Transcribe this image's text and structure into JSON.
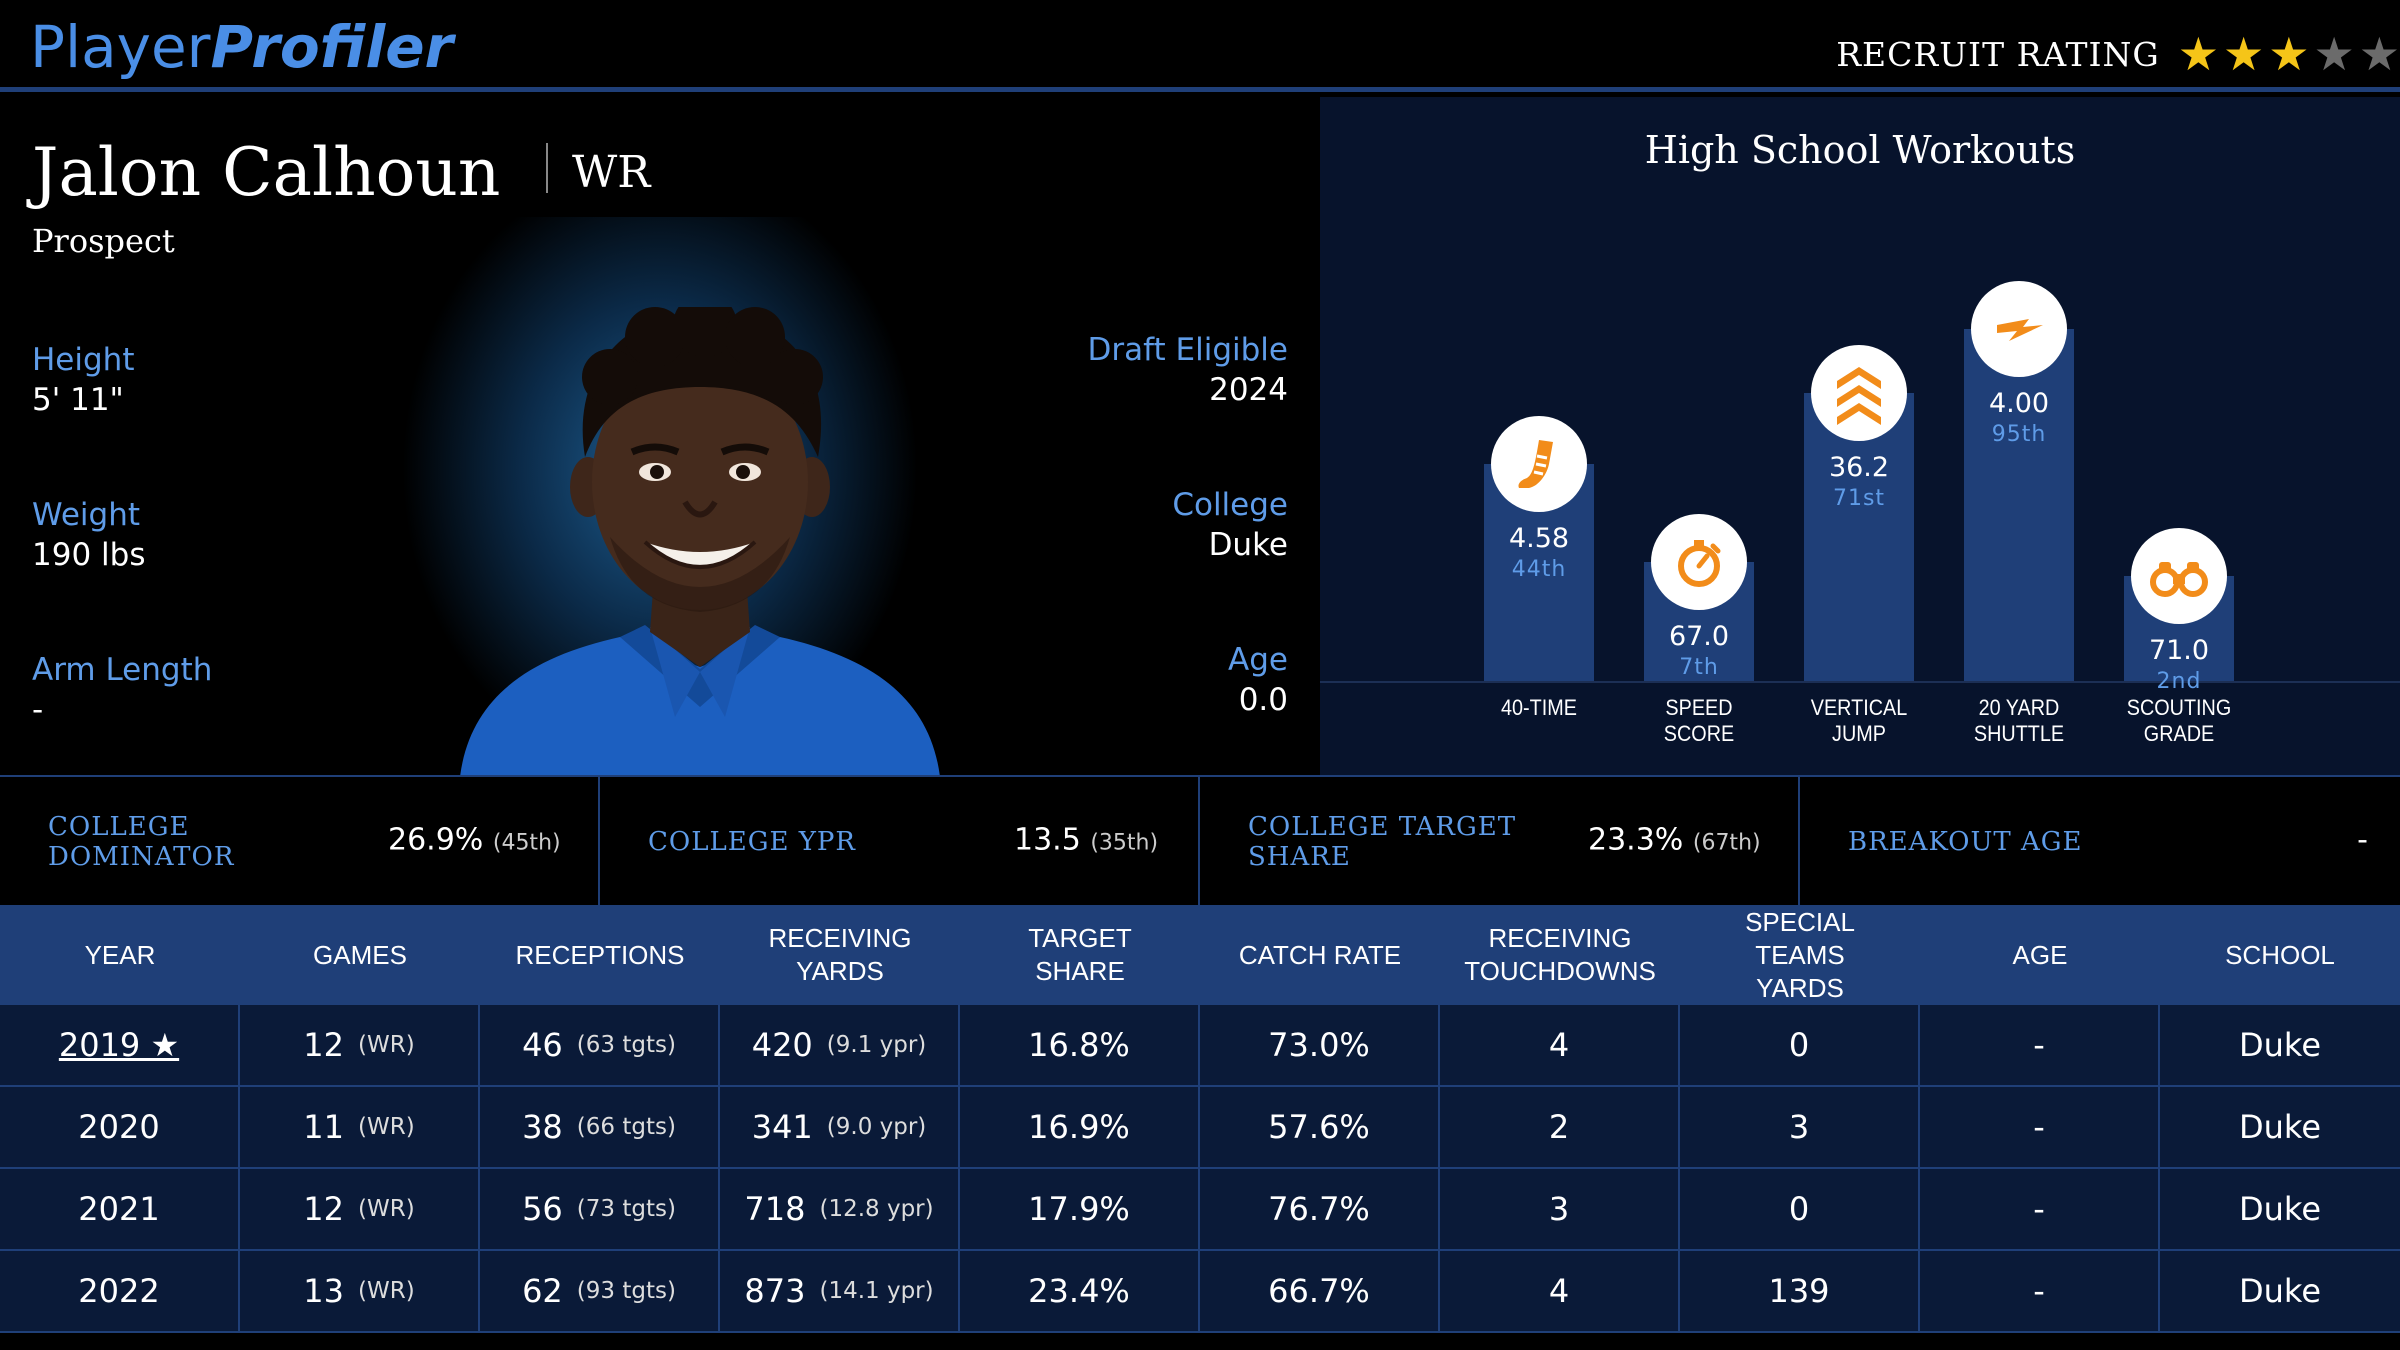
{
  "header": {
    "logo_part1": "Player",
    "logo_part2": "Profiler",
    "recruit_label": "RECRUIT RATING",
    "stars_filled": 3,
    "stars_total": 5
  },
  "player": {
    "name": "Jalon Calhoun",
    "position": "WR",
    "status": "Prospect",
    "height_label": "Height",
    "height": "5' 11\"",
    "weight_label": "Weight",
    "weight": "190 lbs",
    "arm_label": "Arm Length",
    "arm": "-",
    "draft_label": "Draft Eligible",
    "draft": "2024",
    "college_label": "College",
    "college": "Duke",
    "age_label": "Age",
    "age": "0.0"
  },
  "workouts": {
    "title": "High School Workouts",
    "items": [
      {
        "label_line1": "40-TIME",
        "label_line2": "",
        "value": "4.58",
        "percentile": "44th",
        "pct": 44,
        "icon": "running-shoe-icon"
      },
      {
        "label_line1": "SPEED",
        "label_line2": "SCORE",
        "value": "67.0",
        "percentile": "7th",
        "pct": 7,
        "icon": "stopwatch-icon"
      },
      {
        "label_line1": "VERTICAL",
        "label_line2": "JUMP",
        "value": "36.2",
        "percentile": "71st",
        "pct": 71,
        "icon": "chevrons-up-icon"
      },
      {
        "label_line1": "20 YARD",
        "label_line2": "SHUTTLE",
        "value": "4.00",
        "percentile": "95th",
        "pct": 95,
        "icon": "lightning-icon"
      },
      {
        "label_line1": "SCOUTING",
        "label_line2": "GRADE",
        "value": "71.0",
        "percentile": "2nd",
        "pct": 2,
        "icon": "binoculars-icon"
      }
    ]
  },
  "metrics": [
    {
      "label": "COLLEGE DOMINATOR",
      "value": "26.9%",
      "rank": "(45th)"
    },
    {
      "label": "COLLEGE YPR",
      "value": "13.5",
      "rank": "(35th)"
    },
    {
      "label": "COLLEGE TARGET SHARE",
      "value": "23.3%",
      "rank": "(67th)"
    },
    {
      "label": "BREAKOUT AGE",
      "value": "-",
      "rank": ""
    }
  ],
  "table": {
    "headers": [
      "YEAR",
      "GAMES",
      "RECEPTIONS",
      "RECEIVING YARDS",
      "TARGET SHARE",
      "CATCH RATE",
      "RECEIVING TOUCHDOWNS",
      "SPECIAL TEAMS YARDS",
      "AGE",
      "SCHOOL"
    ],
    "rows": [
      {
        "year": "2019 ★",
        "breakout": true,
        "games": "12",
        "games_pos": "(WR)",
        "rec": "46",
        "tgts": "(63 tgts)",
        "yds": "420",
        "ypr": "(9.1 ypr)",
        "tshare": "16.8%",
        "catch": "73.0%",
        "td": "4",
        "st": "0",
        "age": "-",
        "school": "Duke"
      },
      {
        "year": "2020",
        "breakout": false,
        "games": "11",
        "games_pos": "(WR)",
        "rec": "38",
        "tgts": "(66 tgts)",
        "yds": "341",
        "ypr": "(9.0 ypr)",
        "tshare": "16.9%",
        "catch": "57.6%",
        "td": "2",
        "st": "3",
        "age": "-",
        "school": "Duke"
      },
      {
        "year": "2021",
        "breakout": false,
        "games": "12",
        "games_pos": "(WR)",
        "rec": "56",
        "tgts": "(73 tgts)",
        "yds": "718",
        "ypr": "(12.8 ypr)",
        "tshare": "17.9%",
        "catch": "76.7%",
        "td": "3",
        "st": "0",
        "age": "-",
        "school": "Duke"
      },
      {
        "year": "2022",
        "breakout": false,
        "games": "13",
        "games_pos": "(WR)",
        "rec": "62",
        "tgts": "(93 tgts)",
        "yds": "873",
        "ypr": "(14.1 ypr)",
        "tshare": "23.4%",
        "catch": "66.7%",
        "td": "4",
        "st": "139",
        "age": "-",
        "school": "Duke"
      }
    ]
  },
  "colors": {
    "accent": "#1f3f78",
    "label_blue": "#5f9ce8",
    "icon_orange": "#f28c1a",
    "star_on": "#f5c518",
    "star_off": "#6b6b6b"
  }
}
